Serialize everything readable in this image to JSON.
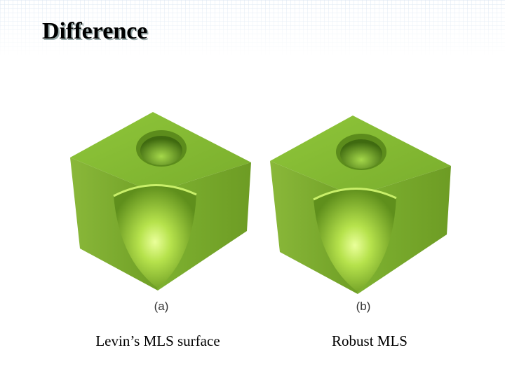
{
  "title": "Difference",
  "figures": [
    {
      "label": "(a)",
      "caption": "Levin’s MLS surface"
    },
    {
      "label": "(b)",
      "caption": "Robust MLS"
    }
  ]
}
